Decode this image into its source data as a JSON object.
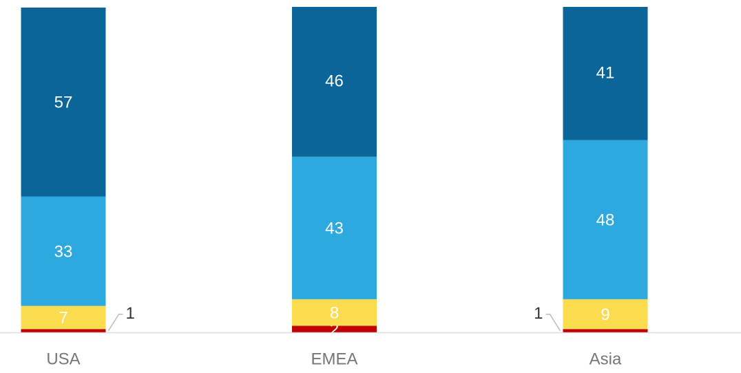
{
  "chart_data": {
    "type": "stacked_bar",
    "categories": [
      "USA",
      "EMEA",
      "Asia"
    ],
    "series": [
      {
        "color": "#c00000",
        "values": [
          1,
          2,
          1
        ]
      },
      {
        "color": "#fcdc4f",
        "values": [
          7,
          8,
          9
        ]
      },
      {
        "color": "#2ea9e0",
        "values": [
          33,
          43,
          48
        ]
      },
      {
        "color": "#0b6598",
        "values": [
          57,
          46,
          41
        ]
      }
    ],
    "ylim": [
      0,
      98
    ]
  }
}
